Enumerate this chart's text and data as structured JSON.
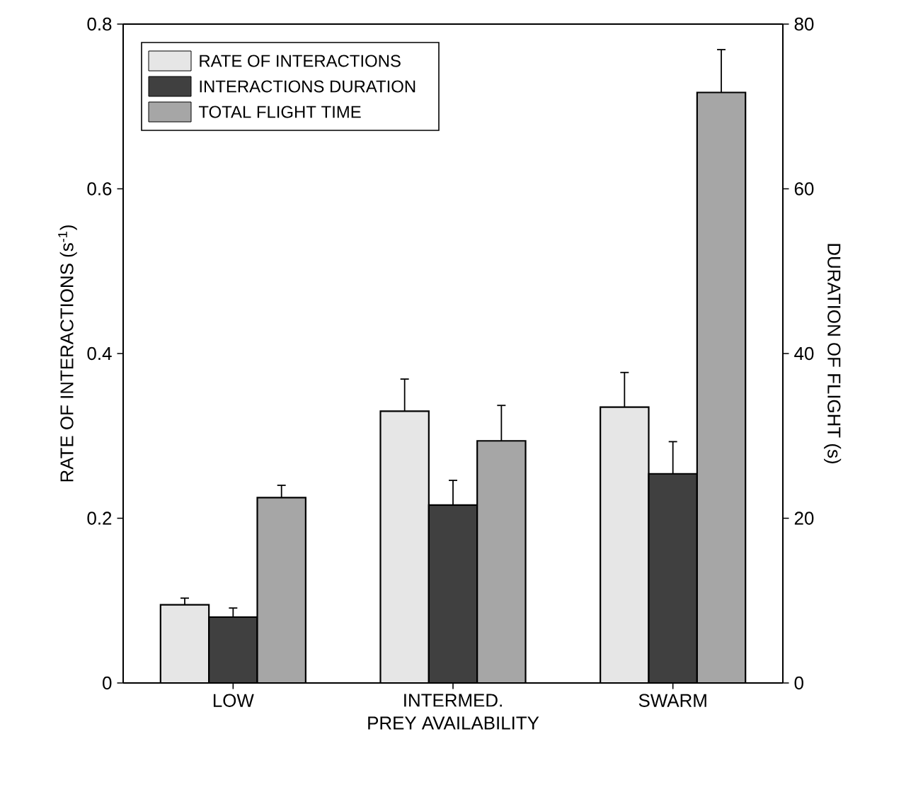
{
  "chart_data": {
    "type": "bar",
    "xlabel": "PREY AVAILABILITY",
    "ylabel": "RATE OF INTERACTIONS (s$^{-1}$)",
    "y2label": "DURATION OF FLIGHT (s)",
    "categories": [
      "LOW",
      "INTERMED.",
      "SWARM"
    ],
    "series": [
      {
        "name": "RATE OF INTERACTIONS",
        "color": "#e6e6e6",
        "values": [
          0.095,
          0.33,
          0.335
        ],
        "errors": [
          [
            0.095,
            0.103
          ],
          [
            0.33,
            0.369
          ],
          [
            0.335,
            0.377
          ]
        ]
      },
      {
        "name": "INTERACTIONS DURATION",
        "color": "#404040",
        "axis": "y2",
        "values": [
          8.0,
          21.6,
          25.4
        ],
        "errors": [
          [
            8.0,
            9.1
          ],
          [
            21.6,
            24.6
          ],
          [
            25.4,
            29.3
          ]
        ]
      },
      {
        "name": "TOTAL FLIGHT TIME",
        "color": "#a6a6a6",
        "axis": "y2",
        "values": [
          22.5,
          29.4,
          71.7
        ],
        "errors": [
          [
            22.5,
            24.0
          ],
          [
            29.4,
            33.7
          ],
          [
            71.7,
            76.9
          ]
        ]
      }
    ],
    "ylim": [
      0,
      0.8
    ],
    "yticks": [
      0,
      0.2,
      0.4,
      0.6,
      0.8
    ],
    "y2lim": [
      0,
      80
    ],
    "y2ticks": [
      0,
      20,
      40,
      60,
      80
    ],
    "legend": "top left",
    "grid": false
  }
}
